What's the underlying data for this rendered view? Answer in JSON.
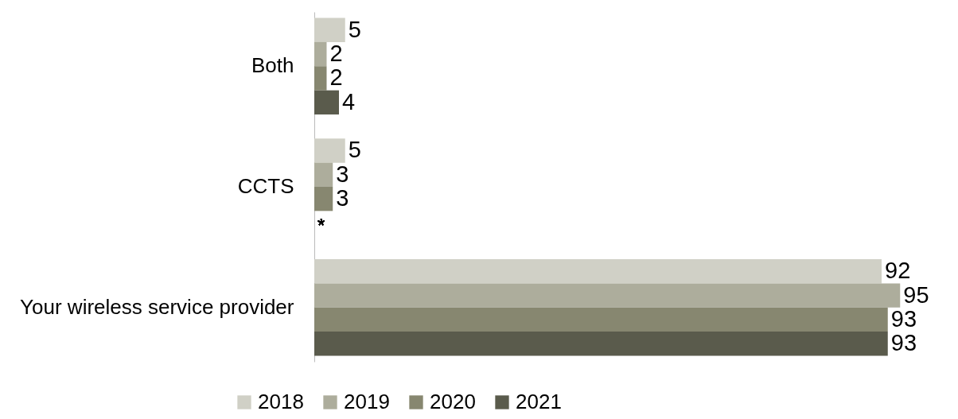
{
  "chart_data": {
    "type": "bar",
    "orientation": "horizontal",
    "categories": [
      "Both",
      "CCTS",
      "Your wireless service provider"
    ],
    "series": [
      {
        "name": "2018",
        "color": "#d0d0c6",
        "values": [
          5,
          5,
          92
        ]
      },
      {
        "name": "2019",
        "color": "#adad9c",
        "values": [
          2,
          3,
          95
        ]
      },
      {
        "name": "2020",
        "color": "#878770",
        "values": [
          2,
          3,
          93
        ]
      },
      {
        "name": "2021",
        "color": "#5a5b4c",
        "values": [
          4,
          null,
          93
        ]
      }
    ],
    "annotations": [
      {
        "text": "*",
        "y": "CCTS"
      }
    ],
    "data_labels": true,
    "legend": "bottom"
  }
}
